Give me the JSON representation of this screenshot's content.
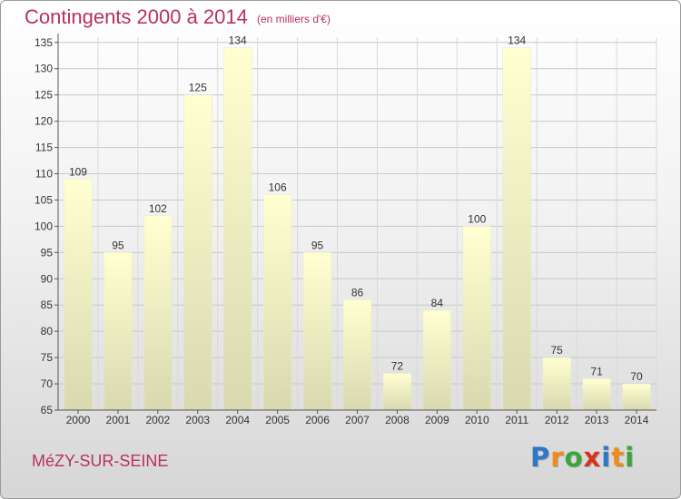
{
  "header": {
    "title": "Contingents 2000 à 2014",
    "subtitle": "(en milliers d'€)"
  },
  "footer": {
    "commune": "MéZY-SUR-SEINE",
    "brand_letters": [
      {
        "char": "P",
        "color": "#2e78c8"
      },
      {
        "char": "r",
        "color": "#f08a1a"
      },
      {
        "char": "o",
        "color": "#3aa63a"
      },
      {
        "char": "x",
        "color": "#d6321f"
      },
      {
        "char": "i",
        "color": "#2e78c8"
      },
      {
        "char": "t",
        "color": "#f08a1a"
      },
      {
        "char": "i",
        "color": "#3aa63a"
      }
    ]
  },
  "chart_data": {
    "type": "bar",
    "categories": [
      "2000",
      "2001",
      "2002",
      "2003",
      "2004",
      "2005",
      "2006",
      "2007",
      "2008",
      "2009",
      "2010",
      "2011",
      "2012",
      "2013",
      "2014"
    ],
    "values": [
      109,
      95,
      102,
      125,
      134,
      106,
      95,
      86,
      72,
      84,
      100,
      134,
      75,
      71,
      70
    ],
    "title": "Contingents 2000 à 2014",
    "xlabel": "",
    "ylabel": "",
    "ylim": [
      65,
      136
    ],
    "yticks": [
      65,
      70,
      75,
      80,
      85,
      90,
      95,
      100,
      105,
      110,
      115,
      120,
      125,
      130,
      135
    ],
    "grid": true,
    "bar_color_top": "#ffffd2",
    "bar_color_bottom": "#d9d9b0"
  }
}
